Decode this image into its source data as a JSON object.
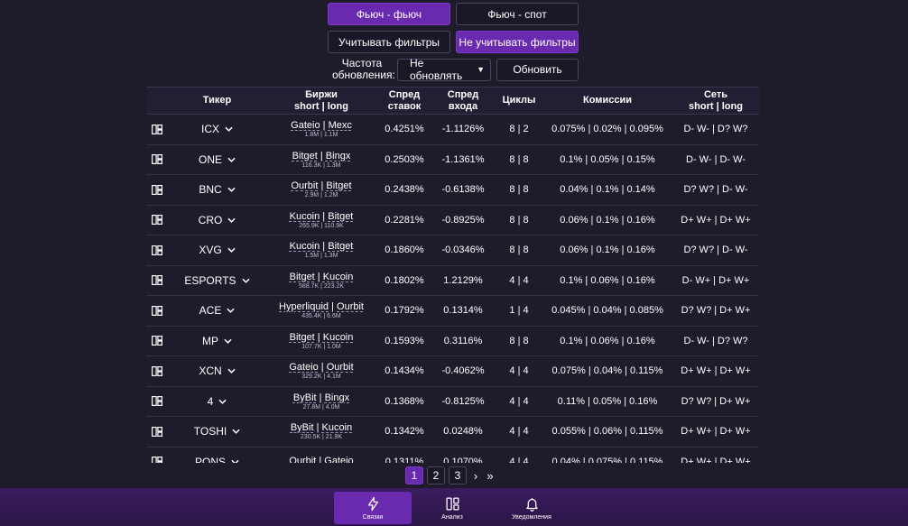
{
  "mode": {
    "futures_futures": "Фьюч - фьюч",
    "futures_spot": "Фьюч - спот"
  },
  "filters": {
    "apply": "Учитывать фильтры",
    "ignore": "Не учитывать фильтры"
  },
  "refresh": {
    "label": "Частота обновления:",
    "selected": "Не обновлять",
    "button": "Обновить"
  },
  "table": {
    "headers": {
      "ticker": "Тикер",
      "exchanges": "Биржи",
      "exchanges_sub": "short | long",
      "rate_spread": "Спред",
      "rate_spread_sub": "ставок",
      "entry_spread": "Спред",
      "entry_spread_sub": "входа",
      "cycles": "Циклы",
      "fees": "Комиссии",
      "network": "Сеть",
      "network_sub": "short | long"
    },
    "rows": [
      {
        "ticker": "ICX",
        "ex_short": "Gateio",
        "ex_long": "Mexc",
        "vol": "1.8M | 1.1M",
        "rate_spread": "0.4251%",
        "entry_spread": "-1.1126%",
        "cycles": "8 | 2",
        "fees": "0.075% | 0.02% | 0.095%",
        "network": "D- W- | D? W?"
      },
      {
        "ticker": "ONE",
        "ex_short": "Bitget",
        "ex_long": "Bingx",
        "vol": "116.3K | 1.3M",
        "rate_spread": "0.2503%",
        "entry_spread": "-1.1361%",
        "cycles": "8 | 8",
        "fees": "0.1% | 0.05% | 0.15%",
        "network": "D- W- | D- W-"
      },
      {
        "ticker": "BNC",
        "ex_short": "Ourbit",
        "ex_long": "Bitget",
        "vol": "2.9M | 1.2M",
        "rate_spread": "0.2438%",
        "entry_spread": "-0.6138%",
        "cycles": "8 | 8",
        "fees": "0.04% | 0.1% | 0.14%",
        "network": "D? W? | D- W-"
      },
      {
        "ticker": "CRO",
        "ex_short": "Kucoin",
        "ex_long": "Bitget",
        "vol": "265.9K | 110.9K",
        "rate_spread": "0.2281%",
        "entry_spread": "-0.8925%",
        "cycles": "8 | 8",
        "fees": "0.06% | 0.1% | 0.16%",
        "network": "D+ W+ | D+ W+"
      },
      {
        "ticker": "XVG",
        "ex_short": "Kucoin",
        "ex_long": "Bitget",
        "vol": "1.5M | 1.3M",
        "rate_spread": "0.1860%",
        "entry_spread": "-0.0346%",
        "cycles": "8 | 8",
        "fees": "0.06% | 0.1% | 0.16%",
        "network": "D? W? | D- W-"
      },
      {
        "ticker": "ESPORTS",
        "ex_short": "Bitget",
        "ex_long": "Kucoin",
        "vol": "588.7K | 223.2K",
        "rate_spread": "0.1802%",
        "entry_spread": "1.2129%",
        "cycles": "4 | 4",
        "fees": "0.1% | 0.06% | 0.16%",
        "network": "D- W+ | D+ W+"
      },
      {
        "ticker": "ACE",
        "ex_short": "Hyperliquid",
        "ex_long": "Ourbit",
        "vol": "435.4K | 6.6M",
        "rate_spread": "0.1792%",
        "entry_spread": "0.1314%",
        "cycles": "1 | 4",
        "fees": "0.045% | 0.04% | 0.085%",
        "network": "D? W? | D+ W+"
      },
      {
        "ticker": "MP",
        "ex_short": "Bitget",
        "ex_long": "Kucoin",
        "vol": "107.7K | 1.0M",
        "rate_spread": "0.1593%",
        "entry_spread": "0.3116%",
        "cycles": "8 | 8",
        "fees": "0.1% | 0.06% | 0.16%",
        "network": "D- W- | D? W?"
      },
      {
        "ticker": "XCN",
        "ex_short": "Gateio",
        "ex_long": "Ourbit",
        "vol": "329.2K | 4.1M",
        "rate_spread": "0.1434%",
        "entry_spread": "-0.4062%",
        "cycles": "4 | 4",
        "fees": "0.075% | 0.04% | 0.115%",
        "network": "D+ W+ | D+ W+"
      },
      {
        "ticker": "4",
        "ex_short": "ByBit",
        "ex_long": "Bingx",
        "vol": "27.8M | 4.0M",
        "rate_spread": "0.1368%",
        "entry_spread": "-0.8125%",
        "cycles": "4 | 4",
        "fees": "0.11% | 0.05% | 0.16%",
        "network": "D? W? | D+ W+"
      },
      {
        "ticker": "TOSHI",
        "ex_short": "ByBit",
        "ex_long": "Kucoin",
        "vol": "230.5K | 21.9K",
        "rate_spread": "0.1342%",
        "entry_spread": "0.0248%",
        "cycles": "4 | 4",
        "fees": "0.055% | 0.06% | 0.115%",
        "network": "D+ W+ | D+ W+"
      },
      {
        "ticker": "PONS",
        "ex_short": "Ourbit",
        "ex_long": "Gateio",
        "vol": "",
        "rate_spread": "0.1311%",
        "entry_spread": "0.1070%",
        "cycles": "4 | 4",
        "fees": "0.04% | 0.075% | 0.115%",
        "network": "D+ W+ | D+ W+"
      }
    ]
  },
  "pagination": {
    "pages": [
      "1",
      "2",
      "3"
    ],
    "current": "1",
    "next": "›",
    "last": "»"
  },
  "nav": {
    "bundles": "Связки",
    "analysis": "Анализ",
    "notifications": "Уведомления"
  }
}
